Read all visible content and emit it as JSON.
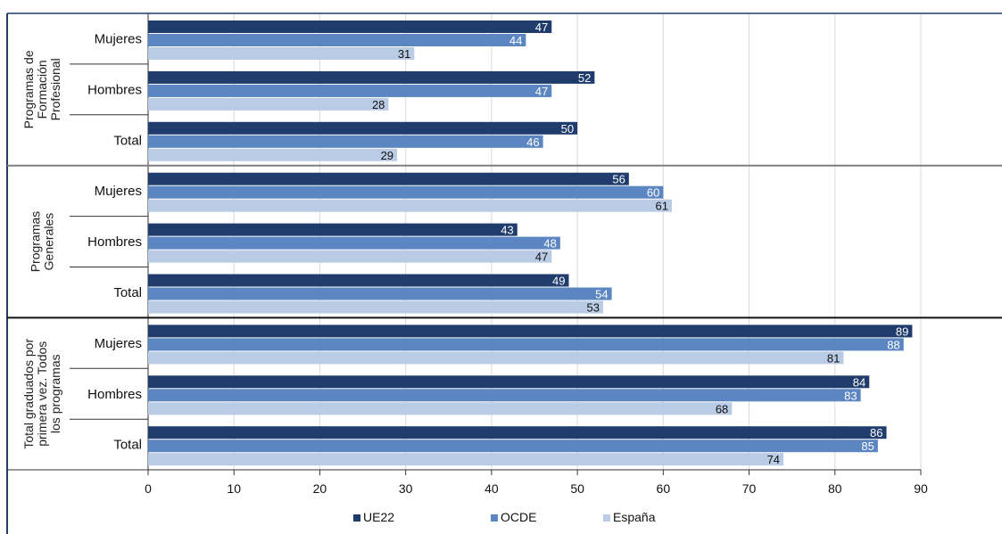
{
  "chart_data": {
    "type": "bar",
    "orientation": "horizontal",
    "title": "",
    "xlabel": "",
    "ylabel": "",
    "xlim": [
      0,
      90
    ],
    "xticks": [
      0,
      10,
      20,
      30,
      40,
      50,
      60,
      70,
      80,
      90
    ],
    "grid": true,
    "legend_position": "bottom",
    "series": [
      {
        "name": "UE22",
        "color": "#1f3c6d"
      },
      {
        "name": "OCDE",
        "color": "#5b86c2"
      },
      {
        "name": "España",
        "color": "#b9cbe5"
      }
    ],
    "groups": [
      {
        "label": "Programas de Formación Profesional",
        "label_lines": [
          "Programas de",
          "Formación",
          "Profesional"
        ],
        "categories": [
          {
            "label": "Mujeres",
            "values": [
              47,
              44,
              31
            ]
          },
          {
            "label": "Hombres",
            "values": [
              52,
              47,
              28
            ]
          },
          {
            "label": "Total",
            "values": [
              50,
              46,
              29
            ]
          }
        ]
      },
      {
        "label": "Programas Generales",
        "label_lines": [
          "Programas",
          "Generales"
        ],
        "categories": [
          {
            "label": "Mujeres",
            "values": [
              56,
              60,
              61
            ]
          },
          {
            "label": "Hombres",
            "values": [
              43,
              48,
              47
            ]
          },
          {
            "label": "Total",
            "values": [
              49,
              54,
              53
            ]
          }
        ]
      },
      {
        "label": "Total graduados por primera vez. Todos los programas",
        "label_lines": [
          "Total graduados por",
          "primera vez. Todos",
          "los programas"
        ],
        "categories": [
          {
            "label": "Mujeres",
            "values": [
              89,
              88,
              81
            ]
          },
          {
            "label": "Hombres",
            "values": [
              84,
              83,
              68
            ]
          },
          {
            "label": "Total",
            "values": [
              86,
              85,
              74
            ]
          }
        ]
      }
    ]
  }
}
